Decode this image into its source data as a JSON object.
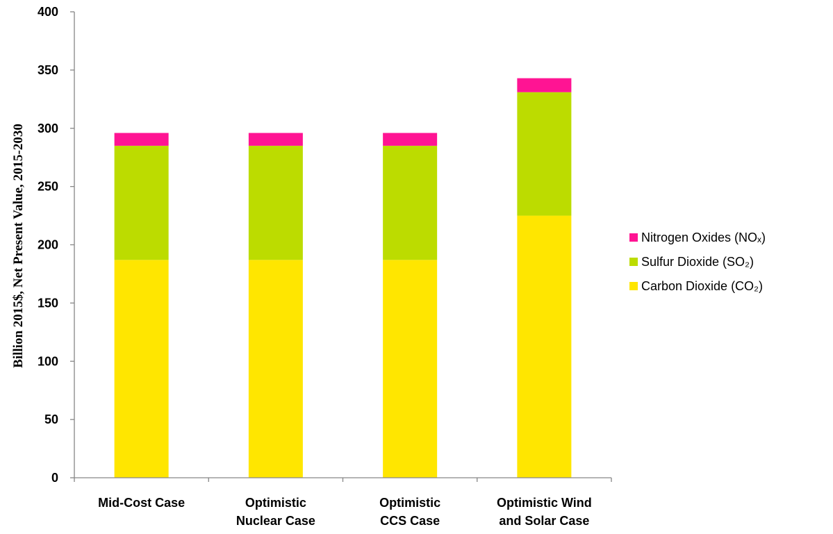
{
  "chart_data": {
    "type": "bar",
    "stacked": true,
    "categories": [
      [
        "Mid-Cost Case"
      ],
      [
        "Optimistic",
        "Nuclear Case"
      ],
      [
        "Optimistic",
        "CCS Case"
      ],
      [
        "Optimistic Wind",
        "and Solar Case"
      ]
    ],
    "series": [
      {
        "name": "Carbon Dioxide (CO₂)",
        "color": "#ffe600",
        "values": [
          187,
          187,
          187,
          225
        ]
      },
      {
        "name": "Sulfur Dioxide (SO₂)",
        "color": "#bcdc00",
        "values": [
          98,
          98,
          98,
          106
        ]
      },
      {
        "name": "Nitrogen Oxides (NOₓ)",
        "color": "#ff1493",
        "values": [
          11,
          11,
          11,
          12
        ]
      }
    ],
    "legend_order": [
      "Nitrogen Oxides (NOₓ)",
      "Sulfur Dioxide (SO₂)",
      "Carbon Dioxide (CO₂)"
    ],
    "title": "",
    "xlabel": "",
    "ylabel": "Billion 2015$, Net Present Value, 2015-2030",
    "ylim": [
      0,
      400
    ],
    "yticks": [
      0,
      50,
      100,
      150,
      200,
      250,
      300,
      350,
      400
    ],
    "grid": false,
    "legend_position": "right"
  }
}
